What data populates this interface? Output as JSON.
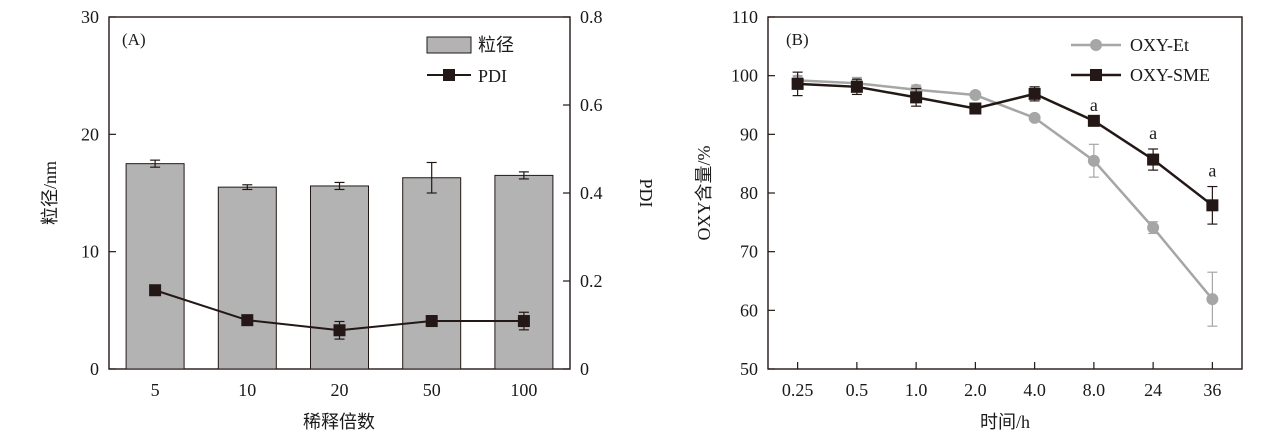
{
  "chart_data": [
    {
      "type": "bar+line",
      "panel_label": "(A)",
      "xlabel": "稀释倍数",
      "ylabel": "粒径/nm",
      "y2label": "PDI",
      "categories": [
        "5",
        "10",
        "20",
        "50",
        "100"
      ],
      "ylim": [
        0,
        30
      ],
      "yticks": [
        "0",
        "10",
        "20",
        "30"
      ],
      "y2lim": [
        0,
        0.8
      ],
      "y2ticks": [
        "0",
        "0.2",
        "0.4",
        "0.6",
        "0.8"
      ],
      "legend_position": "top-right",
      "series": [
        {
          "name": "粒径",
          "kind": "bar",
          "axis": "left",
          "values": [
            17.5,
            15.5,
            15.6,
            16.3,
            16.5
          ],
          "errors": [
            0.3,
            0.2,
            0.3,
            1.3,
            0.3
          ],
          "color": "#b3b3b3"
        },
        {
          "name": "PDI",
          "kind": "line",
          "axis": "right",
          "values": [
            0.179,
            0.111,
            0.088,
            0.109,
            0.109
          ],
          "errors": [
            0.0,
            0.005,
            0.02,
            0.012,
            0.02
          ],
          "color": "#231815"
        }
      ]
    },
    {
      "type": "line",
      "panel_label": "(B)",
      "xlabel": "时间/h",
      "ylabel": "OXY含量/%",
      "categories": [
        "0.25",
        "0.5",
        "1.0",
        "2.0",
        "4.0",
        "8.0",
        "24",
        "36"
      ],
      "ylim": [
        50,
        110
      ],
      "yticks": [
        "50",
        "60",
        "70",
        "80",
        "90",
        "100",
        "110"
      ],
      "legend_position": "top-right",
      "series": [
        {
          "name": "OXY-Et",
          "values": [
            99.2,
            98.7,
            97.6,
            96.7,
            92.8,
            85.5,
            74.1,
            61.9
          ],
          "errors": [
            0.8,
            1.0,
            0.8,
            0.0,
            0.0,
            2.8,
            1.0,
            4.6
          ],
          "color": "#a6a6a6",
          "marker": "circle"
        },
        {
          "name": "OXY-SME",
          "values": [
            98.6,
            98.1,
            96.3,
            94.4,
            96.9,
            92.3,
            85.7,
            77.9
          ],
          "errors": [
            2.0,
            1.3,
            1.5,
            0.3,
            1.2,
            0.0,
            1.8,
            3.2
          ],
          "color": "#231815",
          "marker": "square"
        }
      ],
      "annotations": [
        {
          "text": "a",
          "category": "8.0"
        },
        {
          "text": "a",
          "category": "24"
        },
        {
          "text": "a",
          "category": "36"
        }
      ]
    }
  ]
}
